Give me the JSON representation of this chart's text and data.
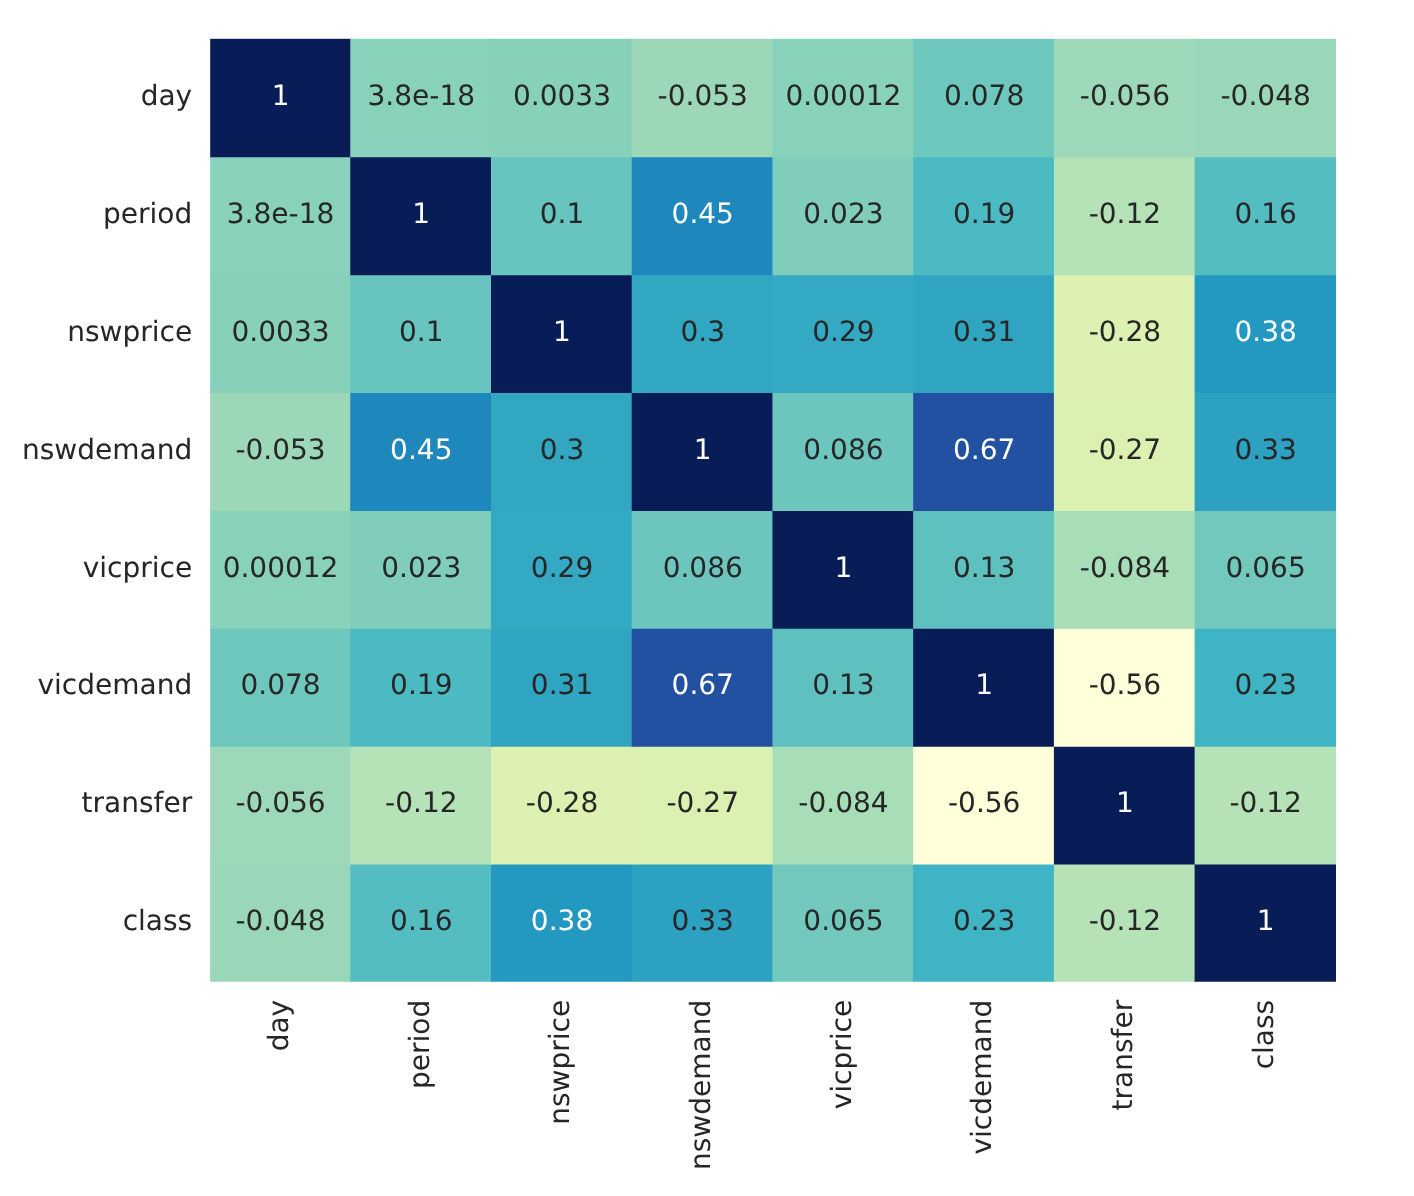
{
  "chart_data": {
    "type": "heatmap",
    "categories": [
      "day",
      "period",
      "nswprice",
      "nswdemand",
      "vicprice",
      "vicdemand",
      "transfer",
      "class"
    ],
    "y_categories": [
      "day",
      "period",
      "nswprice",
      "nswdemand",
      "vicprice",
      "vicdemand",
      "transfer",
      "class"
    ],
    "cells": [
      [
        1,
        3.8e-18,
        0.0033,
        -0.053,
        0.00012,
        0.078,
        -0.056,
        -0.048
      ],
      [
        3.8e-18,
        1,
        0.1,
        0.45,
        0.023,
        0.19,
        -0.12,
        0.16
      ],
      [
        0.0033,
        0.1,
        1,
        0.3,
        0.29,
        0.31,
        -0.28,
        0.38
      ],
      [
        -0.053,
        0.45,
        0.3,
        1,
        0.086,
        0.67,
        -0.27,
        0.33
      ],
      [
        0.00012,
        0.023,
        0.29,
        0.086,
        1,
        0.13,
        -0.084,
        0.065
      ],
      [
        0.078,
        0.19,
        0.31,
        0.67,
        0.13,
        1,
        -0.56,
        0.23
      ],
      [
        -0.056,
        -0.12,
        -0.28,
        -0.27,
        -0.084,
        -0.56,
        1,
        -0.12
      ],
      [
        -0.048,
        0.16,
        0.38,
        0.33,
        0.065,
        0.23,
        -0.12,
        1
      ]
    ],
    "data_labels": true
  }
}
